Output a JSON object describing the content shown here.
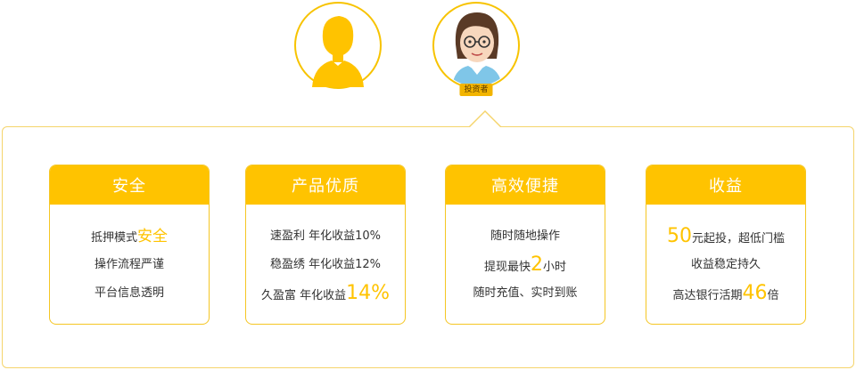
{
  "avatars": {
    "investor_badge": "投资者"
  },
  "cards": [
    {
      "title": "安全",
      "lines": [
        {
          "pre": "抵押模式",
          "hl": "安全",
          "post": ""
        },
        {
          "pre": "操作流程严谨",
          "hl": "",
          "post": ""
        },
        {
          "pre": "平台信息透明",
          "hl": "",
          "post": ""
        }
      ]
    },
    {
      "title": "产品优质",
      "lines": [
        {
          "pre": "速盈利 年化收益10%",
          "hl": "",
          "post": ""
        },
        {
          "pre": "稳盈绣 年化收益12%",
          "hl": "",
          "post": ""
        },
        {
          "pre": "久盈富 年化收益",
          "hl": "14%",
          "post": ""
        }
      ]
    },
    {
      "title": "高效便捷",
      "lines": [
        {
          "pre": "随时随地操作",
          "hl": "",
          "post": ""
        },
        {
          "pre": "提现最快",
          "hl": "2",
          "post": "小时"
        },
        {
          "pre": "随时充值、实时到账",
          "hl": "",
          "post": ""
        }
      ]
    },
    {
      "title": "收益",
      "lines": [
        {
          "pre": "",
          "hl": "50",
          "post": "元起投，超低门槛"
        },
        {
          "pre": "收益稳定持久",
          "hl": "",
          "post": ""
        },
        {
          "pre": "高达银行活期",
          "hl": "46",
          "post": "倍"
        }
      ]
    }
  ],
  "colors": {
    "accent": "#ffc300",
    "border": "#f5c623",
    "text": "#333333"
  }
}
